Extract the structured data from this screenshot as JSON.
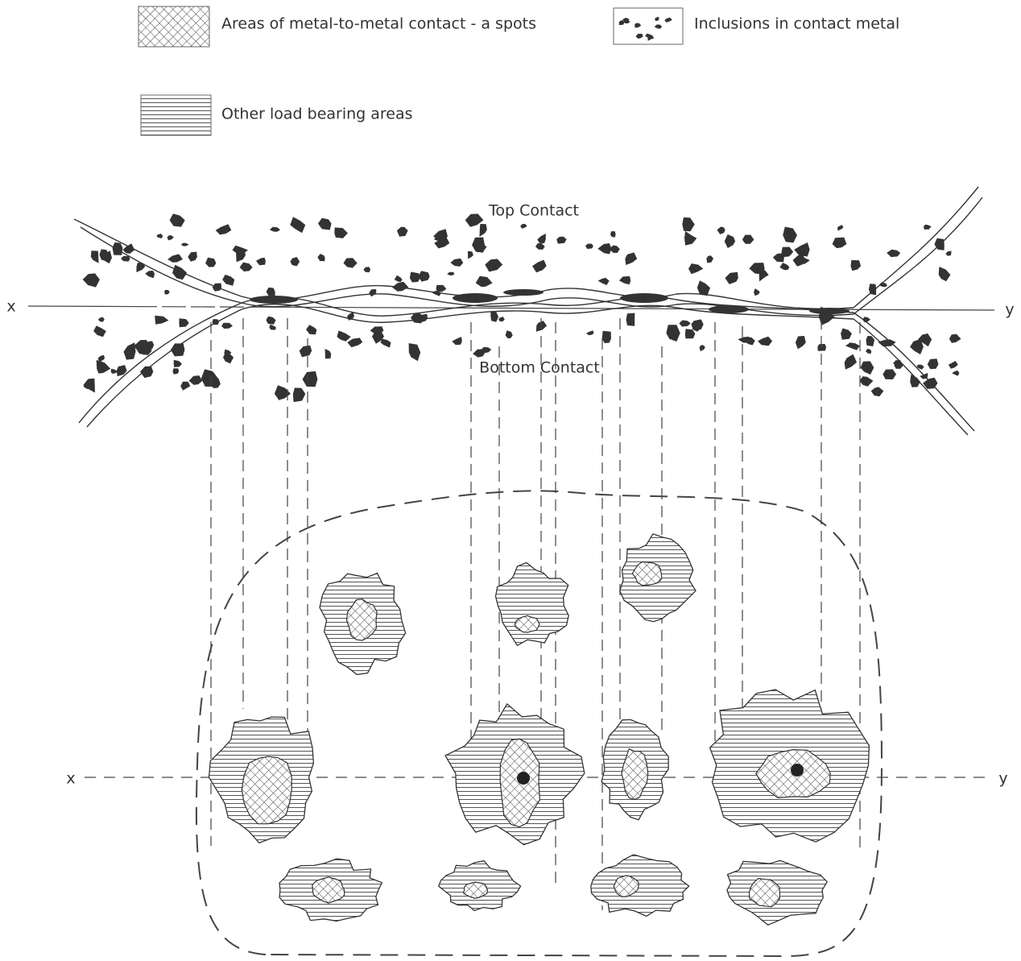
{
  "legend": [
    {
      "label": "Areas of metal-to-metal contact - a spots"
    },
    {
      "label": "Inclusions in contact metal"
    },
    {
      "label": "Other load bearing areas"
    }
  ],
  "section_labels": {
    "top": "Top Contact",
    "bottom": "Bottom Contact"
  },
  "axis_labels": {
    "upper_start": "x",
    "upper_end": "y",
    "lower_start": "x",
    "lower_end": "y"
  }
}
